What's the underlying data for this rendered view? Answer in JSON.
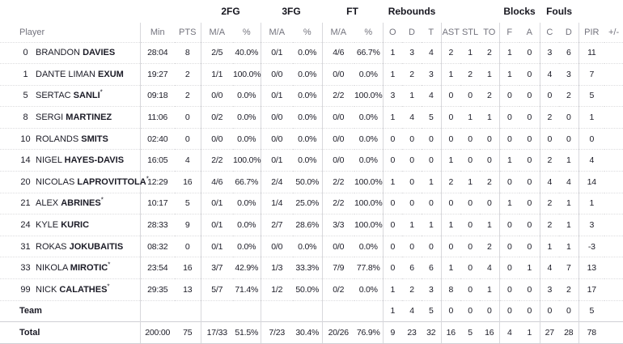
{
  "colors": {
    "text": "#1b1b26",
    "muted_header": "#73737d",
    "divider_solid": "#d8d8dc",
    "divider_dotted": "#dcdcde"
  },
  "headers": {
    "groups": [
      "2FG",
      "3FG",
      "FT",
      "Rebounds",
      "Blocks",
      "Fouls"
    ],
    "cols": [
      "Player",
      "Min",
      "PTS",
      "M/A",
      "%",
      "M/A",
      "%",
      "M/A",
      "%",
      "O",
      "D",
      "T",
      "AST",
      "STL",
      "TO",
      "F",
      "A",
      "C",
      "D",
      "PIR",
      "+/-"
    ]
  },
  "players": [
    {
      "number": "0",
      "first": "BRANDON",
      "last": "DAVIES",
      "starter": false,
      "stats": [
        "28:04",
        "8",
        "2/5",
        "40.0%",
        "0/1",
        "0.0%",
        "4/6",
        "66.7%",
        "1",
        "3",
        "4",
        "2",
        "1",
        "2",
        "1",
        "0",
        "3",
        "6",
        "11",
        ""
      ]
    },
    {
      "number": "1",
      "first": "DANTE LIMAN",
      "last": "EXUM",
      "starter": false,
      "stats": [
        "19:27",
        "2",
        "1/1",
        "100.0%",
        "0/0",
        "0.0%",
        "0/0",
        "0.0%",
        "1",
        "2",
        "3",
        "1",
        "2",
        "1",
        "1",
        "0",
        "4",
        "3",
        "7",
        ""
      ]
    },
    {
      "number": "5",
      "first": "SERTAC",
      "last": "SANLI",
      "starter": true,
      "stats": [
        "09:18",
        "2",
        "0/0",
        "0.0%",
        "0/1",
        "0.0%",
        "2/2",
        "100.0%",
        "3",
        "1",
        "4",
        "0",
        "0",
        "2",
        "0",
        "0",
        "0",
        "2",
        "5",
        ""
      ]
    },
    {
      "number": "8",
      "first": "SERGI",
      "last": "MARTINEZ",
      "starter": false,
      "stats": [
        "11:06",
        "0",
        "0/2",
        "0.0%",
        "0/0",
        "0.0%",
        "0/0",
        "0.0%",
        "1",
        "4",
        "5",
        "0",
        "1",
        "1",
        "0",
        "0",
        "2",
        "0",
        "1",
        ""
      ]
    },
    {
      "number": "10",
      "first": "ROLANDS",
      "last": "SMITS",
      "starter": false,
      "stats": [
        "02:40",
        "0",
        "0/0",
        "0.0%",
        "0/0",
        "0.0%",
        "0/0",
        "0.0%",
        "0",
        "0",
        "0",
        "0",
        "0",
        "0",
        "0",
        "0",
        "0",
        "0",
        "0",
        ""
      ]
    },
    {
      "number": "14",
      "first": "NIGEL",
      "last": "HAYES-DAVIS",
      "starter": false,
      "stats": [
        "16:05",
        "4",
        "2/2",
        "100.0%",
        "0/1",
        "0.0%",
        "0/0",
        "0.0%",
        "0",
        "0",
        "0",
        "1",
        "0",
        "0",
        "1",
        "0",
        "2",
        "1",
        "4",
        ""
      ]
    },
    {
      "number": "20",
      "first": "NICOLAS",
      "last": "LAPROVITTOLA",
      "starter": true,
      "stats": [
        "12:29",
        "16",
        "4/6",
        "66.7%",
        "2/4",
        "50.0%",
        "2/2",
        "100.0%",
        "1",
        "0",
        "1",
        "2",
        "1",
        "2",
        "0",
        "0",
        "4",
        "4",
        "14",
        ""
      ]
    },
    {
      "number": "21",
      "first": "ALEX",
      "last": "ABRINES",
      "starter": true,
      "stats": [
        "10:17",
        "5",
        "0/1",
        "0.0%",
        "1/4",
        "25.0%",
        "2/2",
        "100.0%",
        "0",
        "0",
        "0",
        "0",
        "0",
        "0",
        "1",
        "0",
        "2",
        "1",
        "1",
        ""
      ]
    },
    {
      "number": "24",
      "first": "KYLE",
      "last": "KURIC",
      "starter": false,
      "stats": [
        "28:33",
        "9",
        "0/1",
        "0.0%",
        "2/7",
        "28.6%",
        "3/3",
        "100.0%",
        "0",
        "1",
        "1",
        "1",
        "0",
        "1",
        "0",
        "0",
        "2",
        "1",
        "3",
        ""
      ]
    },
    {
      "number": "31",
      "first": "ROKAS",
      "last": "JOKUBAITIS",
      "starter": false,
      "stats": [
        "08:32",
        "0",
        "0/1",
        "0.0%",
        "0/0",
        "0.0%",
        "0/0",
        "0.0%",
        "0",
        "0",
        "0",
        "0",
        "0",
        "2",
        "0",
        "0",
        "1",
        "1",
        "-3",
        ""
      ]
    },
    {
      "number": "33",
      "first": "NIKOLA",
      "last": "MIROTIC",
      "starter": true,
      "stats": [
        "23:54",
        "16",
        "3/7",
        "42.9%",
        "1/3",
        "33.3%",
        "7/9",
        "77.8%",
        "0",
        "6",
        "6",
        "1",
        "0",
        "4",
        "0",
        "1",
        "4",
        "7",
        "13",
        ""
      ]
    },
    {
      "number": "99",
      "first": "NICK",
      "last": "CALATHES",
      "starter": true,
      "stats": [
        "29:35",
        "13",
        "5/7",
        "71.4%",
        "1/2",
        "50.0%",
        "0/2",
        "0.0%",
        "1",
        "2",
        "3",
        "8",
        "0",
        "1",
        "0",
        "0",
        "3",
        "2",
        "17",
        ""
      ]
    }
  ],
  "team_row": {
    "label": "Team",
    "stats": [
      "",
      "",
      "",
      "",
      "",
      "",
      "",
      "",
      "1",
      "4",
      "5",
      "0",
      "0",
      "0",
      "0",
      "0",
      "0",
      "0",
      "5",
      ""
    ]
  },
  "total_row": {
    "label": "Total",
    "stats": [
      "200:00",
      "75",
      "17/33",
      "51.5%",
      "7/23",
      "30.4%",
      "20/26",
      "76.9%",
      "9",
      "23",
      "32",
      "16",
      "5",
      "16",
      "4",
      "1",
      "27",
      "28",
      "78",
      ""
    ]
  }
}
